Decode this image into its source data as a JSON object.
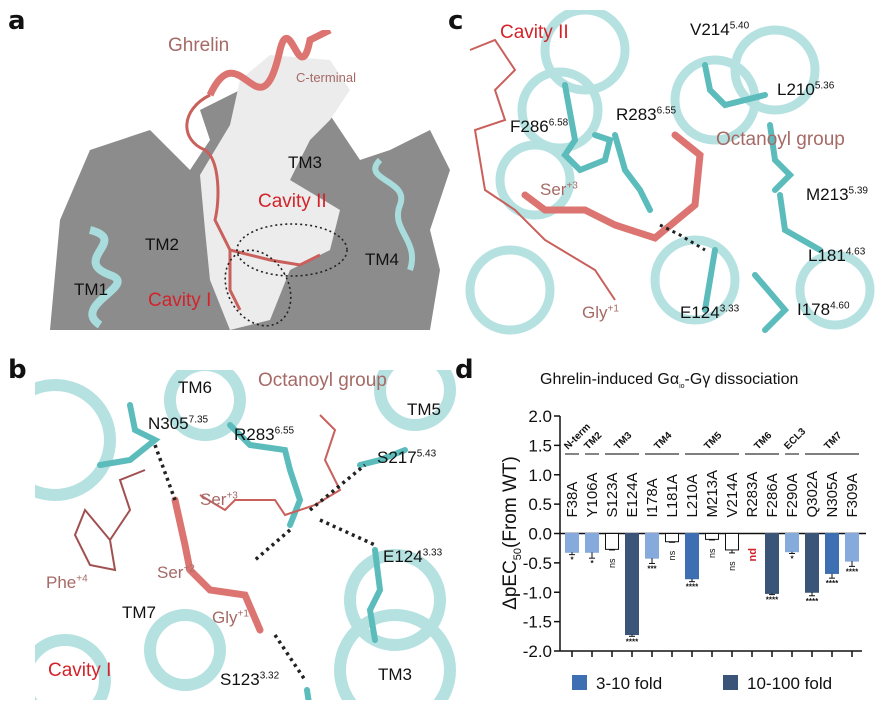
{
  "panels": {
    "a": {
      "letter": "a",
      "labels": {
        "ghrelin": "Ghrelin",
        "c_terminal": "C-terminal",
        "tm3": "TM3",
        "cavity2": "Cavity II",
        "tm2": "TM2",
        "tm4": "TM4",
        "tm1": "TM1",
        "cavity1": "Cavity I"
      }
    },
    "b": {
      "letter": "b",
      "labels": {
        "tm6": "TM6",
        "octanoyl": "Octanoyl group",
        "tm5": "TM5",
        "n305": "N305",
        "n305_sup": "7.35",
        "r283": "R283",
        "r283_sup": "6.55",
        "s217": "S217",
        "s217_sup": "5.43",
        "ser3": "Ser",
        "ser3_sup": "+3",
        "ser2": "Ser",
        "ser2_sup": "+2",
        "phe4": "Phe",
        "phe4_sup": "+4",
        "tm7": "TM7",
        "gly1": "Gly",
        "gly1_sup": "+1",
        "e124": "E124",
        "e124_sup": "3.33",
        "cavity1": "Cavity I",
        "s123": "S123",
        "s123_sup": "3.32",
        "tm3": "TM3"
      }
    },
    "c": {
      "letter": "c",
      "labels": {
        "cavity2": "Cavity II",
        "v214": "V214",
        "v214_sup": "5.40",
        "l210": "L210",
        "l210_sup": "5.36",
        "f286": "F286",
        "f286_sup": "6.58",
        "r283": "R283",
        "r283_sup": "6.55",
        "octanoyl": "Octanoyl group",
        "ser3": "Ser",
        "ser3_sup": "+3",
        "m213": "M213",
        "m213_sup": "5.39",
        "l181": "L181",
        "l181_sup": "4.63",
        "gly1": "Gly",
        "gly1_sup": "+1",
        "e124": "E124",
        "e124_sup": "3.33",
        "i178": "I178",
        "i178_sup": "4.60"
      }
    },
    "d": {
      "letter": "d"
    }
  },
  "colors": {
    "helix": "#a9dcdc",
    "stick_receptor": "#5cbcbc",
    "ligand": "#dc7571",
    "surface_gray": "#8c8c8c",
    "surface_white": "#ececec",
    "label_red": "#d2232a",
    "label_rose": "#a56a66"
  },
  "chart_data": {
    "type": "bar",
    "title": "Ghrelin-induced Gα",
    "title_sub": "io",
    "title_end": "-Gγ dissociation",
    "ylabel": "ΔpEC",
    "ylabel_sub": "50",
    "ylabel_end": "(From WT)",
    "ylim": [
      -2.0,
      2.0
    ],
    "yticks": [
      "2.0",
      "1.5",
      "1.0",
      "0.5",
      "0.0",
      "-0.5",
      "-1.0",
      "-1.5",
      "-2.0"
    ],
    "ytick_values": [
      2.0,
      1.5,
      1.0,
      0.5,
      0.0,
      -0.5,
      -1.0,
      -1.5,
      -2.0
    ],
    "categories": [
      "F38A",
      "Y106A",
      "S123A",
      "E124A",
      "I178A",
      "L181A",
      "L210A",
      "M213A",
      "V214A",
      "R283A",
      "F286A",
      "F290A",
      "Q302A",
      "N305A",
      "F309A"
    ],
    "values": [
      -0.32,
      -0.32,
      -0.27,
      -1.72,
      -0.42,
      -0.14,
      -0.77,
      -0.1,
      -0.28,
      null,
      -1.02,
      -0.31,
      -1.0,
      -0.68,
      -0.47
    ],
    "errors": [
      0.04,
      0.1,
      0.01,
      0.03,
      0.09,
      0.01,
      0.05,
      0.01,
      0.05,
      null,
      0.02,
      0.03,
      0.06,
      0.08,
      0.09
    ],
    "significance": [
      "*",
      "*",
      "ns",
      "****",
      "***",
      "ns",
      "****",
      "ns",
      "ns",
      "nd",
      "****",
      "*",
      "****",
      "****",
      "****"
    ],
    "fold_class": [
      "low",
      "low",
      "none",
      "high",
      "low",
      "none",
      "mid",
      "none",
      "none",
      "nd",
      "high",
      "low",
      "high",
      "mid",
      "low"
    ],
    "regions": [
      {
        "name": "N-term",
        "from": 0,
        "to": 0
      },
      {
        "name": "TM2",
        "from": 1,
        "to": 1
      },
      {
        "name": "TM3",
        "from": 2,
        "to": 3
      },
      {
        "name": "TM4",
        "from": 4,
        "to": 5
      },
      {
        "name": "TM5",
        "from": 6,
        "to": 8
      },
      {
        "name": "TM6",
        "from": 9,
        "to": 10
      },
      {
        "name": "ECL3",
        "from": 11,
        "to": 11
      },
      {
        "name": "TM7",
        "from": 12,
        "to": 14
      }
    ],
    "fold_colors": {
      "low": "#86aadb",
      "mid": "#3e6fb2",
      "high": "#3a5577",
      "none": "#ffffff"
    },
    "legend": [
      {
        "label": "3-10 fold",
        "color": "#3e6fb2"
      },
      {
        "label": "10-100 fold",
        "color": "#3a5577"
      }
    ],
    "legend_position": "bottom",
    "nd_color": "#d2232a",
    "grid": false
  }
}
